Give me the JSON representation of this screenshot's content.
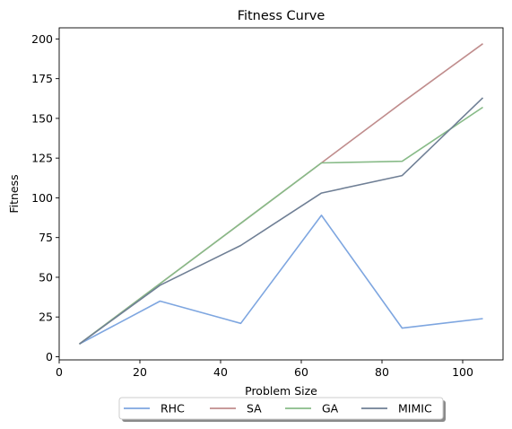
{
  "chart_data": {
    "type": "line",
    "title": "Fitness Curve",
    "xlabel": "Problem Size",
    "ylabel": "Fitness",
    "xlim": [
      0,
      110
    ],
    "ylim": [
      -2,
      207
    ],
    "xticks": [
      0,
      20,
      40,
      60,
      80,
      100
    ],
    "yticks": [
      0,
      25,
      50,
      75,
      100,
      125,
      150,
      175,
      200
    ],
    "grid": false,
    "legend": {
      "placement": "bottom-center",
      "ncol": 4,
      "shadow": true
    },
    "x": [
      5,
      25,
      45,
      65,
      85,
      105
    ],
    "series": [
      {
        "name": "RHC",
        "color": "#7ea6e0",
        "values": [
          8,
          35,
          21,
          89,
          18,
          24
        ]
      },
      {
        "name": "SA",
        "color": "#c08d8d",
        "values": [
          8,
          46,
          84,
          122,
          160,
          197
        ]
      },
      {
        "name": "GA",
        "color": "#88bb88",
        "values": [
          8,
          46,
          84,
          122,
          123,
          157
        ]
      },
      {
        "name": "MIMIC",
        "color": "#6f7f95",
        "values": [
          8,
          45,
          70,
          103,
          114,
          163
        ]
      }
    ]
  }
}
